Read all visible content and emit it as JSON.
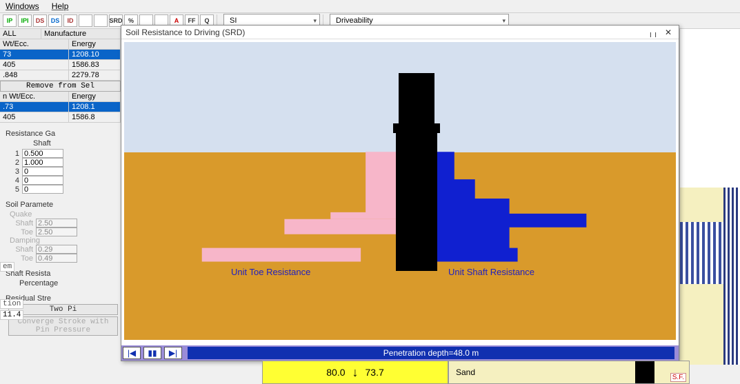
{
  "menu": {
    "windows": "Windows",
    "help": "Help"
  },
  "toolbar": {
    "buttons": [
      "IP",
      "IPI",
      "DS",
      "DS",
      "ID",
      "",
      "",
      "SRD",
      "%",
      "",
      "",
      "A",
      "FF",
      "Q"
    ],
    "btn_colors": [
      "#0a0",
      "#0a0",
      "#a33",
      "#06c",
      "#a33",
      "#a60",
      "#a60",
      "#333",
      "#333",
      "#888",
      "#888",
      "#c00",
      "#333",
      "#333"
    ],
    "unit_select": "SI",
    "mode_select": "Driveability"
  },
  "hammer_table": {
    "filter_all": "ALL",
    "filter_mfg": "Manufacture",
    "col_wt": "Wt/Ecc.",
    "col_en": "Energy",
    "rows": [
      {
        "wt": "73",
        "en": "1208.10",
        "sel": true
      },
      {
        "wt": "405",
        "en": "1586.83",
        "sel": false
      },
      {
        "wt": ".848",
        "en": "2279.78",
        "sel": false
      }
    ],
    "remove_btn": "Remove from Sel",
    "col_wt2": "n Wt/Ecc.",
    "col_en2": "Energy",
    "rows2": [
      {
        "wt": ".73",
        "en": "1208.1",
        "sel": true
      },
      {
        "wt": " 405",
        "en": "1586.8",
        "sel": false
      }
    ]
  },
  "resist_gain": {
    "title": "Resistance Ga",
    "sub": "Shaft",
    "rows": [
      {
        "i": "1",
        "v": "0.500"
      },
      {
        "i": "2",
        "v": "1.000"
      },
      {
        "i": "3",
        "v": "0"
      },
      {
        "i": "4",
        "v": "0"
      },
      {
        "i": "5",
        "v": "0"
      }
    ]
  },
  "soil_params": {
    "title": "Soil Paramete",
    "quake": "Quake",
    "shaft_l": "Shaft",
    "shaft_v": "2.50",
    "toe_l": "Toe",
    "toe_v": "2.50",
    "damping": "Damping",
    "d_shaft_v": "0.29",
    "d_toe_v": "0.49"
  },
  "shaft_resist": {
    "title": "Shaft Resista",
    "sub": "Percentage"
  },
  "residual": {
    "title": "Residual Stre",
    "opt1": "Two Pi",
    "opt2": "Converge Stroke with Pin Pressure"
  },
  "left_float": {
    "em": "em",
    "tion": "tion",
    "val": "11.4"
  },
  "srd": {
    "title": "Soil Resistance to Driving (SRD)",
    "label_toe": "Unit Toe Resistance",
    "label_shaft": "Unit Shaft Resistance",
    "playtext": "Penetration depth=48.0 m",
    "colors": {
      "sky": "#d5e0ef",
      "soil": "#d99a2b",
      "pile": "#000000",
      "toe_fill": "#f7b6c9",
      "shaft_fill": "#1020d0",
      "label": "#2020c0"
    },
    "shaft_poly": "449,160 480,160 480,200 510,200 510,228 560,228 560,250 672,250 672,270 560,270 560,300 572,300 572,320 449,320",
    "toe_poly": "261,260 400,260 400,238 351,238 351,190 400,190 400,160 351,160 351,280 218,280 218,300 380,300 380,320 351,320 351,260",
    "toe_poly2": "351,160 400,160 400,258 300,258 300,248 351,248",
    "toe_poly3": "113,300 344,300 344,320 113,320",
    "toe_poly4": "233,258 400,258 400,280 233,280"
  },
  "bottom": {
    "v1": "80.0",
    "v2": "73.7",
    "sand": "Sand",
    "sf": "S.F."
  }
}
